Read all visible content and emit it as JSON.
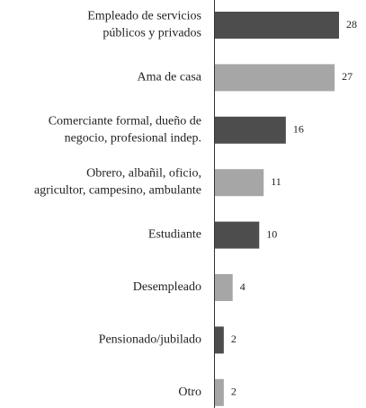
{
  "chart_data": {
    "type": "barh",
    "categories": [
      "Empleado de servicios\npúblicos y privados",
      "Ama de casa",
      "Comerciante formal, dueño de\nnegocio, profesional indep.",
      "Obrero, albañil, oficio,\nagricultor, campesino, ambulante",
      "Estudiante",
      "Desempleado",
      "Pensionado/jubilado",
      "Otro"
    ],
    "values": [
      28,
      27,
      16,
      11,
      10,
      4,
      2,
      2
    ],
    "colors": [
      "#4d4d4d",
      "#a6a6a6",
      "#4d4d4d",
      "#a6a6a6",
      "#4d4d4d",
      "#a6a6a6",
      "#4d4d4d",
      "#a6a6a6"
    ]
  }
}
